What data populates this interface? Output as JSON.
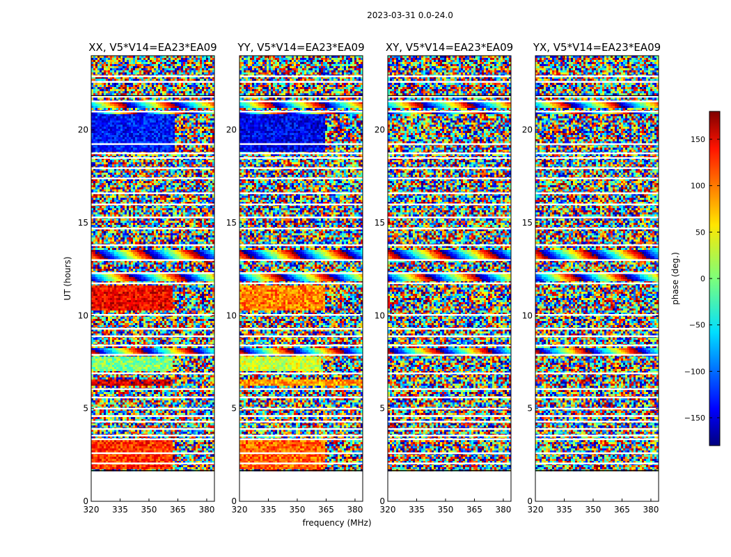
{
  "chart_data": {
    "type": "heatmap",
    "title": "2023-03-31 0.0-24.0",
    "xlabel": "frequency (MHz)",
    "ylabel": "UT (hours)",
    "xlim": [
      320,
      384
    ],
    "ylim": [
      0,
      24
    ],
    "x_ticks": [
      320,
      335,
      350,
      365,
      380
    ],
    "y_ticks": [
      0,
      5,
      10,
      15,
      20
    ],
    "no_data_below_hours": 1.65,
    "panels": [
      {
        "title": "XX, V5*V14=EA23*EA09",
        "coherent_regions": [
          {
            "t0": 1.7,
            "t1": 3.3,
            "f0": 320,
            "f1": 362,
            "phase": 120
          },
          {
            "t0": 6.2,
            "t1": 6.6,
            "f0": 320,
            "f1": 362,
            "phase": 150
          },
          {
            "t0": 7.0,
            "t1": 7.8,
            "f0": 320,
            "f1": 362,
            "phase": 0
          },
          {
            "t0": 10.3,
            "t1": 11.6,
            "f0": 320,
            "f1": 362,
            "phase": 140
          },
          {
            "t0": 18.8,
            "t1": 20.8,
            "f0": 320,
            "f1": 363,
            "phase": -130
          }
        ]
      },
      {
        "title": "YY, V5*V14=EA23*EA09",
        "coherent_regions": [
          {
            "t0": 1.7,
            "t1": 3.3,
            "f0": 320,
            "f1": 364,
            "phase": 100
          },
          {
            "t0": 6.2,
            "t1": 6.6,
            "f0": 320,
            "f1": 384,
            "phase": 80
          },
          {
            "t0": 7.0,
            "t1": 7.8,
            "f0": 320,
            "f1": 362,
            "phase": 30
          },
          {
            "t0": 10.3,
            "t1": 11.6,
            "f0": 320,
            "f1": 364,
            "phase": 90
          },
          {
            "t0": 18.8,
            "t1": 20.8,
            "f0": 320,
            "f1": 364,
            "phase": -140
          }
        ]
      },
      {
        "title": "XY, V5*V14=EA23*EA09",
        "coherent_regions": []
      },
      {
        "title": "YX, V5*V14=EA23*EA09",
        "coherent_regions": []
      }
    ],
    "colorbar": {
      "label": "phase (deg.)",
      "range": [
        -180,
        180
      ],
      "ticks": [
        150,
        100,
        50,
        0,
        -50,
        -100,
        -150
      ],
      "tick_labels": [
        "150",
        "100",
        "50",
        "0",
        "−50",
        "−100",
        "−150"
      ],
      "colormap": "jet"
    }
  }
}
